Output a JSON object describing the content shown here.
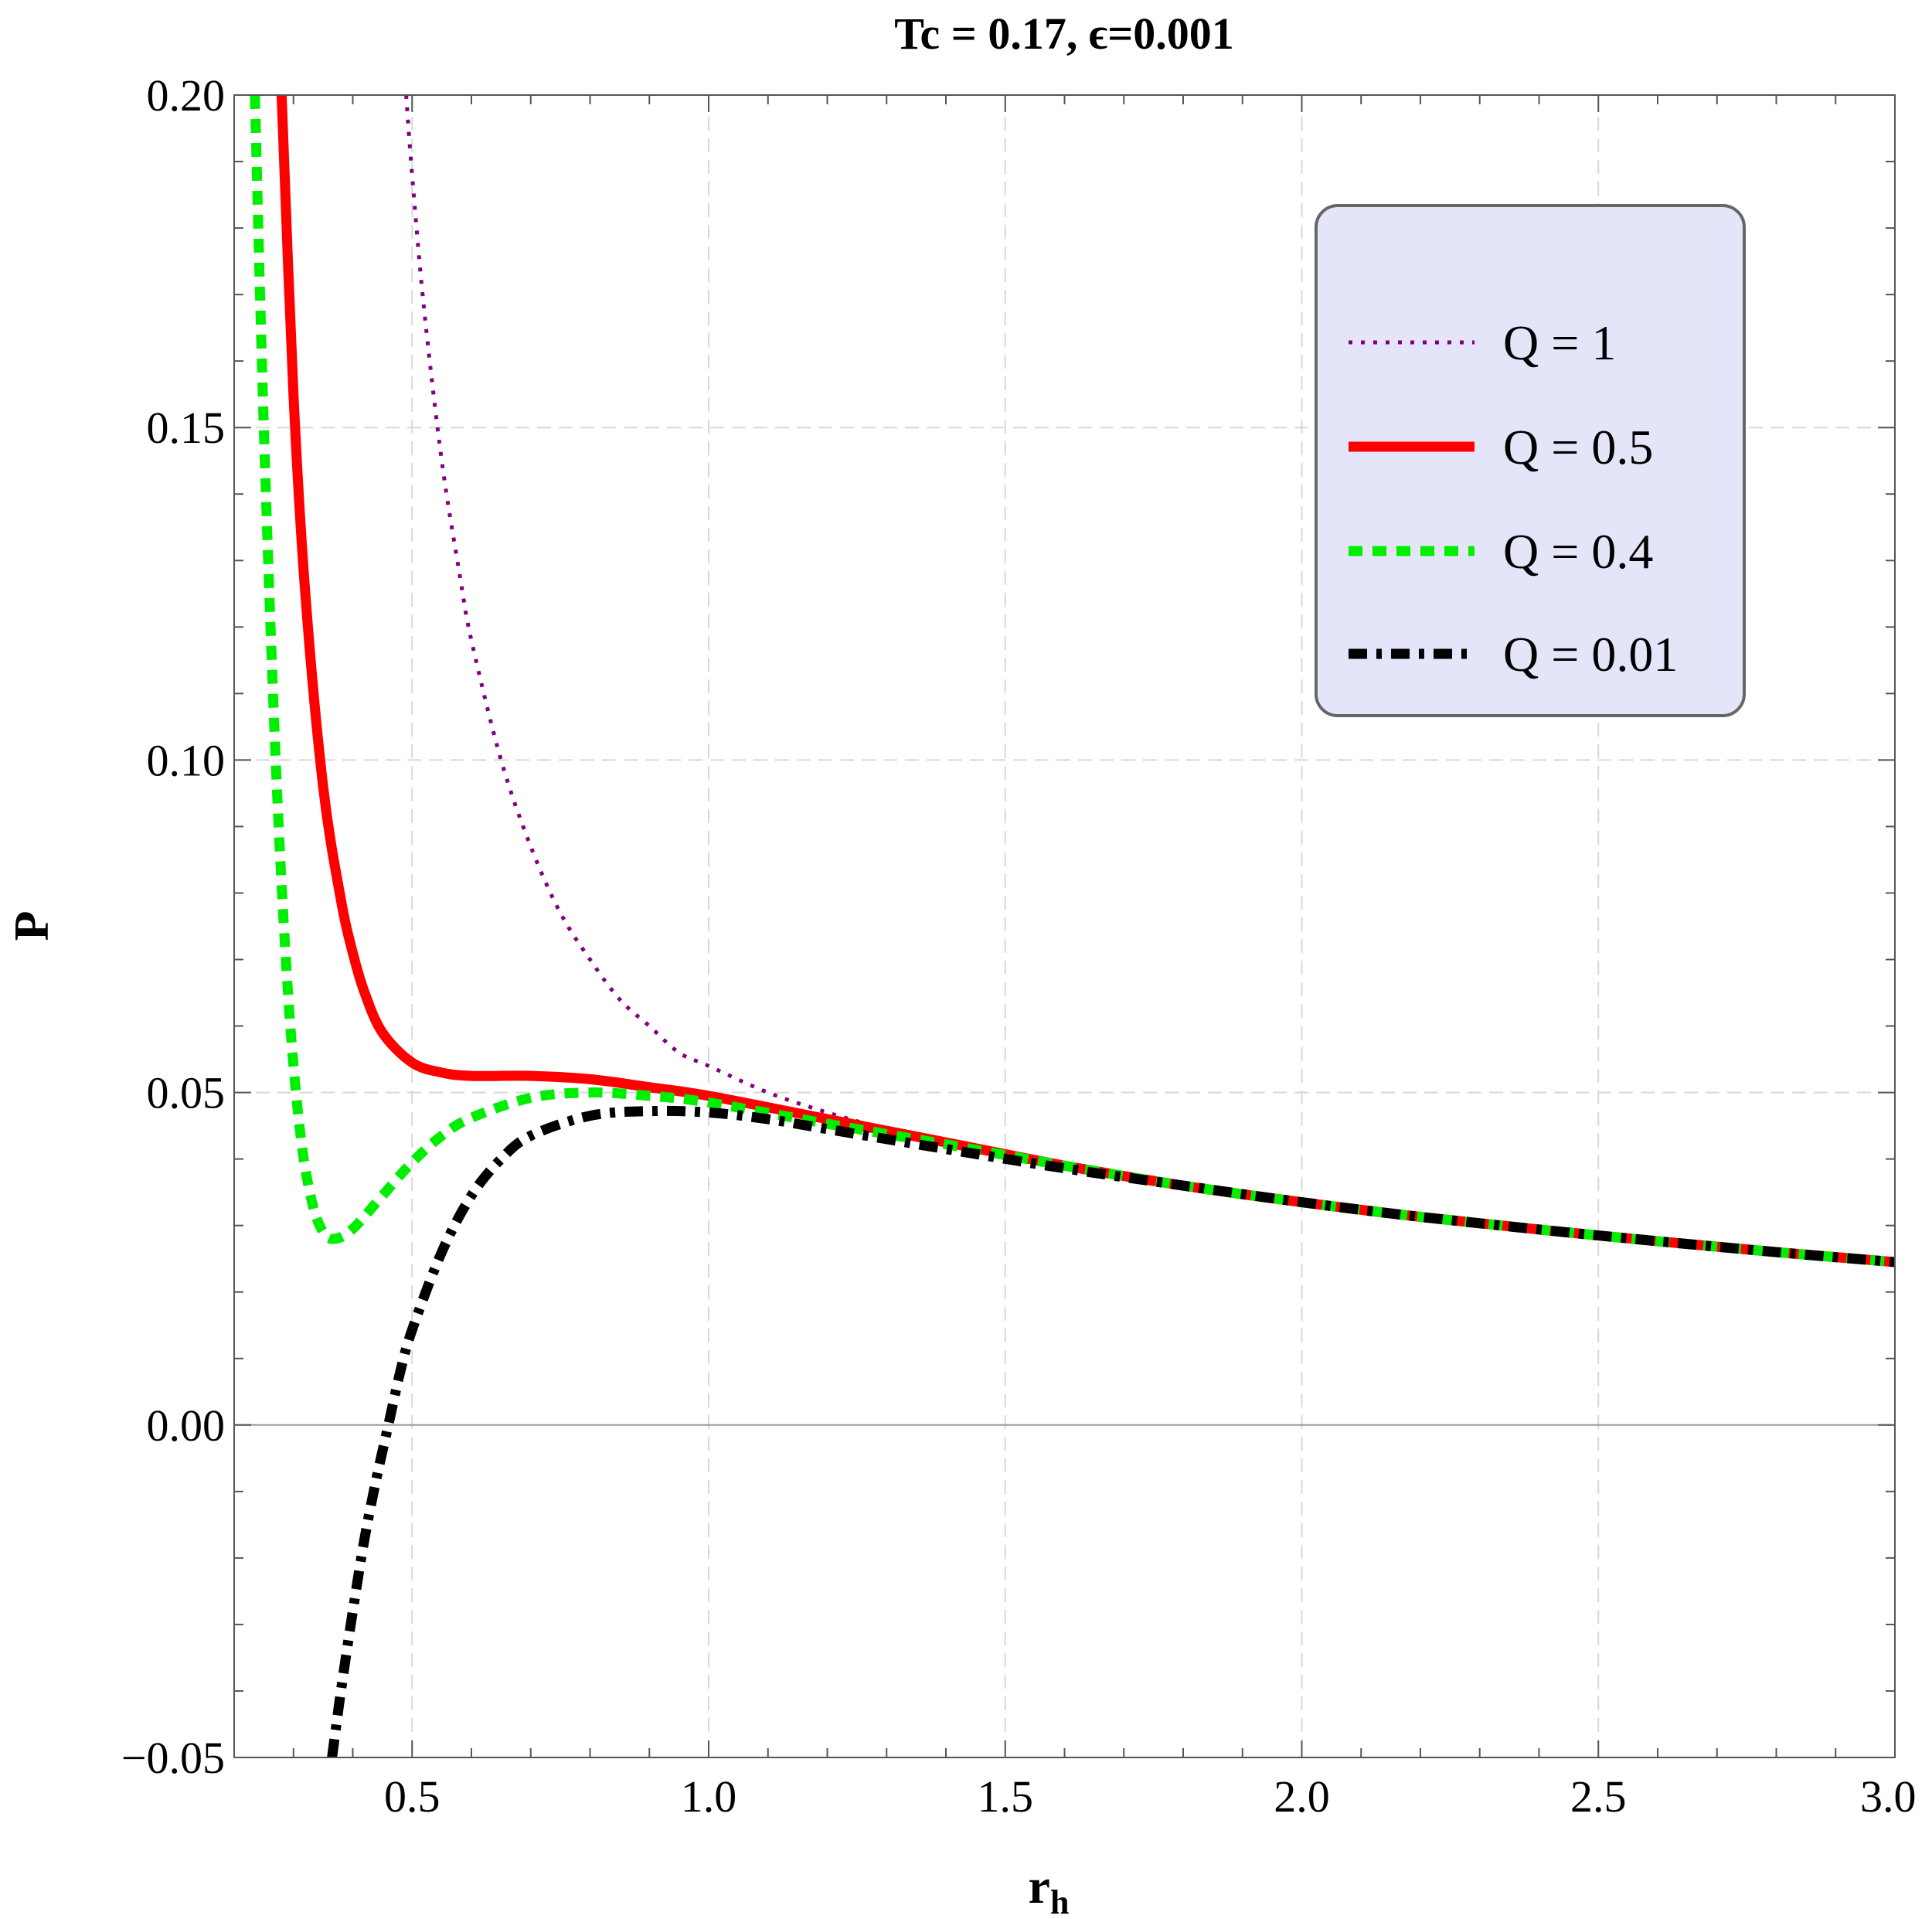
{
  "chart_data": {
    "type": "line",
    "title": "Tc = 0.17, ϵ=0.001",
    "xlabel": "r",
    "xlabel_sub": "h",
    "ylabel": "P",
    "xlim": [
      0.2,
      3.0
    ],
    "ylim": [
      -0.05,
      0.2
    ],
    "x_ticks": [
      0.5,
      1.0,
      1.5,
      2.0,
      2.5,
      3.0
    ],
    "x_tick_labels": [
      "0.5",
      "1.0",
      "1.5",
      "2.0",
      "2.5",
      "3.0"
    ],
    "y_ticks": [
      -0.05,
      0.0,
      0.05,
      0.1,
      0.15,
      0.2
    ],
    "y_tick_labels": [
      "−0.05",
      "0.00",
      "0.05",
      "0.10",
      "0.15",
      "0.20"
    ],
    "grid": true,
    "legend_position": "top-right",
    "series": [
      {
        "name": "Q = 1",
        "color": "#800080",
        "style": "dotted",
        "x": [
          0.49,
          0.5,
          0.52,
          0.55,
          0.58,
          0.6,
          0.65,
          0.7,
          0.75,
          0.8,
          0.85,
          0.9,
          0.95,
          1.0,
          1.1,
          1.2,
          1.3,
          1.4,
          1.5,
          1.6,
          1.8,
          2.0,
          2.2,
          2.5,
          2.8,
          3.0
        ],
        "y": [
          0.2,
          0.188,
          0.168,
          0.145,
          0.128,
          0.118,
          0.1,
          0.087,
          0.077,
          0.07,
          0.064,
          0.06,
          0.056,
          0.054,
          0.05,
          0.047,
          0.0445,
          0.0425,
          0.0405,
          0.039,
          0.036,
          0.0335,
          0.0315,
          0.0285,
          0.026,
          0.0245
        ]
      },
      {
        "name": "Q = 0.5",
        "color": "#ff0000",
        "style": "solid",
        "x": [
          0.28,
          0.3,
          0.32,
          0.35,
          0.38,
          0.4,
          0.42,
          0.45,
          0.5,
          0.55,
          0.6,
          0.7,
          0.8,
          0.9,
          1.0,
          1.2,
          1.4,
          1.6,
          1.8,
          2.0,
          2.2,
          2.5,
          2.8,
          3.0
        ],
        "y": [
          0.2,
          0.155,
          0.125,
          0.096,
          0.079,
          0.071,
          0.065,
          0.059,
          0.0545,
          0.053,
          0.0525,
          0.0525,
          0.052,
          0.0508,
          0.0495,
          0.046,
          0.0425,
          0.039,
          0.036,
          0.0335,
          0.0313,
          0.0285,
          0.026,
          0.0245
        ]
      },
      {
        "name": "Q = 0.4",
        "color": "#00ee00",
        "style": "dashed",
        "x": [
          0.235,
          0.25,
          0.27,
          0.29,
          0.31,
          0.33,
          0.35,
          0.37,
          0.4,
          0.45,
          0.5,
          0.55,
          0.6,
          0.7,
          0.8,
          0.9,
          1.0,
          1.2,
          1.4,
          1.6,
          1.8,
          2.0,
          2.2,
          2.5,
          2.8,
          3.0
        ],
        "y": [
          0.2,
          0.15,
          0.1,
          0.066,
          0.045,
          0.034,
          0.029,
          0.028,
          0.0295,
          0.0345,
          0.0395,
          0.0435,
          0.0462,
          0.0492,
          0.05,
          0.0495,
          0.0485,
          0.0453,
          0.0422,
          0.039,
          0.036,
          0.0335,
          0.0313,
          0.0285,
          0.026,
          0.0245
        ]
      },
      {
        "name": "Q = 0.01",
        "color": "#000000",
        "style": "dashdot",
        "x": [
          0.365,
          0.38,
          0.4,
          0.42,
          0.44,
          0.46,
          0.48,
          0.5,
          0.55,
          0.6,
          0.65,
          0.7,
          0.8,
          0.9,
          1.0,
          1.1,
          1.2,
          1.4,
          1.6,
          1.8,
          2.0,
          2.2,
          2.5,
          2.8,
          3.0
        ],
        "y": [
          -0.05,
          -0.04,
          -0.028,
          -0.017,
          -0.008,
          0.0,
          0.008,
          0.0143,
          0.026,
          0.0345,
          0.04,
          0.0435,
          0.0465,
          0.0472,
          0.047,
          0.046,
          0.0445,
          0.0415,
          0.0386,
          0.036,
          0.0335,
          0.0313,
          0.0285,
          0.026,
          0.0245
        ]
      }
    ]
  }
}
